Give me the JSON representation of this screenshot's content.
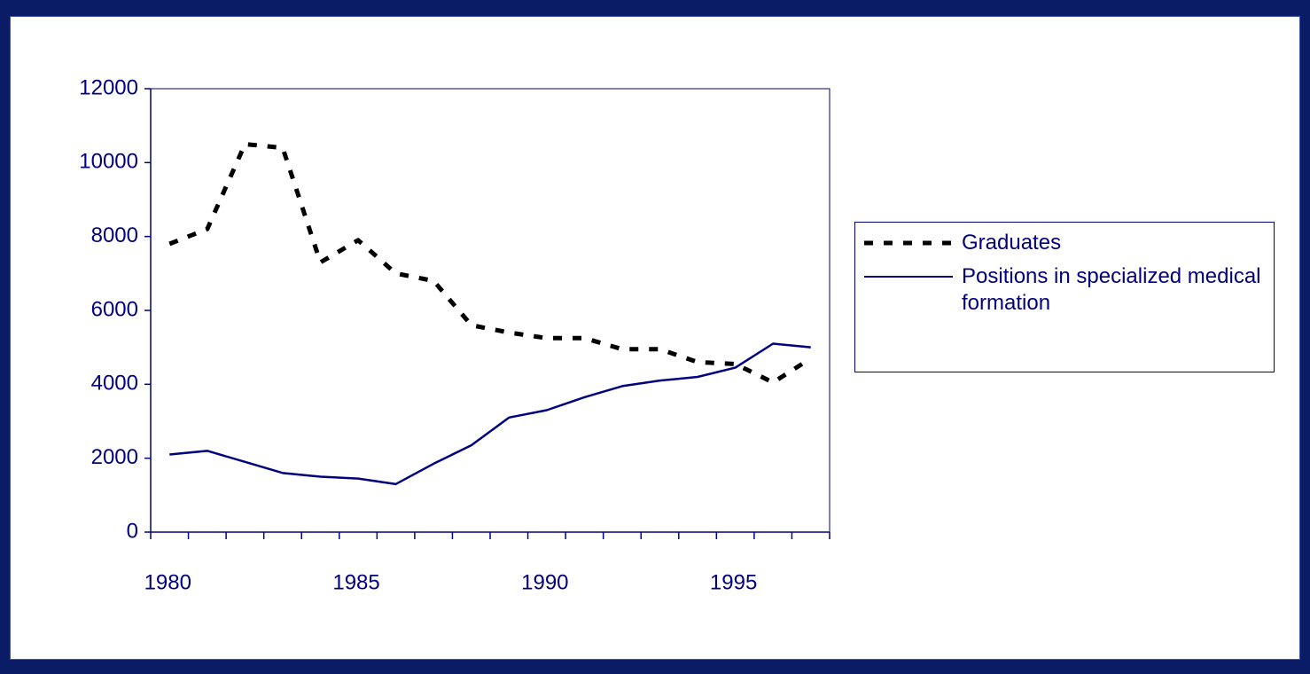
{
  "chart_data": {
    "type": "line",
    "categories": [
      "1980",
      null,
      null,
      null,
      null,
      "1985",
      null,
      null,
      null,
      null,
      "1990",
      null,
      null,
      null,
      null,
      "1995",
      null,
      null
    ],
    "series": [
      {
        "name": "Graduates",
        "color": "#000000",
        "dashed": true,
        "values": [
          7800,
          8200,
          10500,
          10400,
          7300,
          7900,
          7000,
          6800,
          5600,
          5400,
          5250,
          5250,
          4950,
          4950,
          4600,
          4550,
          4050,
          4700
        ]
      },
      {
        "name": "Positions in specialized medical formation",
        "color": "#000080",
        "dashed": false,
        "values": [
          2100,
          2200,
          1900,
          1600,
          1500,
          1450,
          1300,
          1850,
          2350,
          3100,
          3300,
          3650,
          3950,
          4100,
          4200,
          4450,
          5100,
          5000
        ]
      }
    ],
    "ylim": [
      0,
      12000
    ],
    "yticks": [
      0,
      2000,
      4000,
      6000,
      8000,
      10000,
      12000
    ],
    "grid": false,
    "legend": "right"
  }
}
